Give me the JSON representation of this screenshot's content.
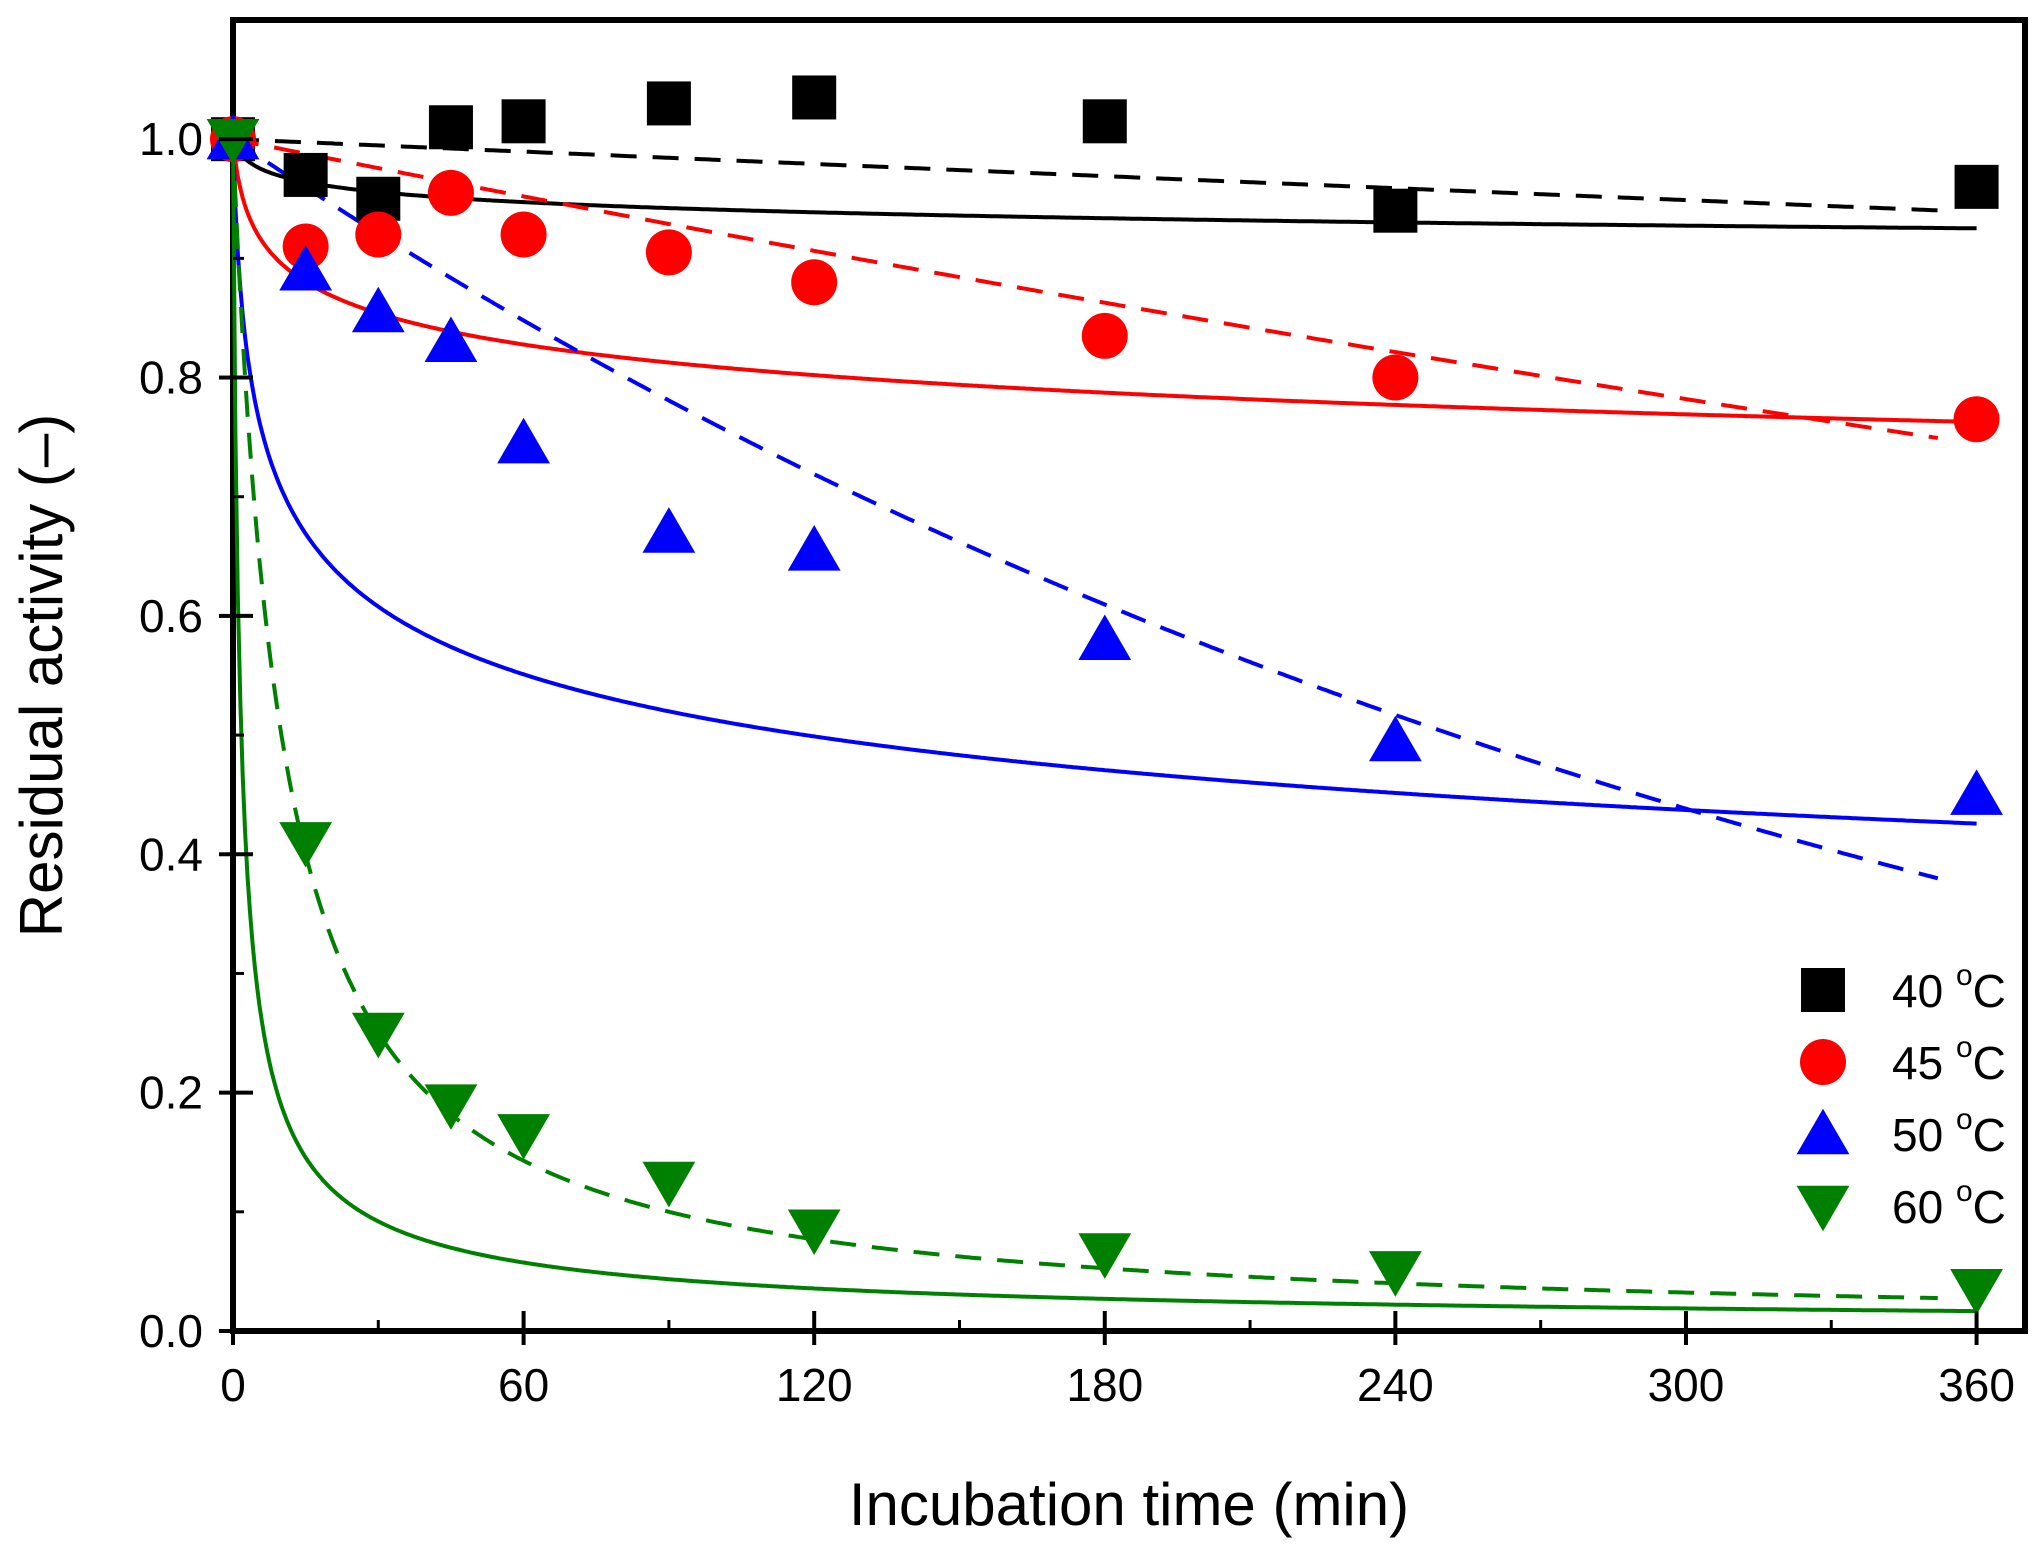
{
  "chart_data": {
    "type": "scatter",
    "xlabel": "Incubation time (min)",
    "ylabel": "Residual activity (–)",
    "xlim": [
      0,
      370
    ],
    "ylim": [
      0,
      1.1
    ],
    "x_ticks": [
      0,
      60,
      120,
      180,
      240,
      300,
      360
    ],
    "y_ticks": [
      0.0,
      0.2,
      0.4,
      0.6,
      0.8,
      1.0
    ],
    "x_tick_labels": [
      "0",
      "60",
      "120",
      "180",
      "240",
      "300",
      "360"
    ],
    "y_tick_labels": [
      "0.0",
      "0.2",
      "0.4",
      "0.6",
      "0.8",
      "1.0"
    ],
    "legend_position": "bottom-right",
    "series": [
      {
        "name": "40 °C",
        "label_main": "40 ",
        "label_sup": "o",
        "label_unit": "C",
        "color": "#000000",
        "marker": "square",
        "x": [
          0,
          15,
          30,
          45,
          60,
          90,
          120,
          180,
          240,
          360
        ],
        "y": [
          1.0,
          0.97,
          0.95,
          1.01,
          1.015,
          1.03,
          1.035,
          1.015,
          0.94,
          0.96
        ],
        "fit_solid": {
          "type": "power",
          "a": 1.0,
          "b": 0.0132
        },
        "fit_dashed": {
          "type": "exp",
          "a": 1.0,
          "k": 0.000175
        }
      },
      {
        "name": "45 °C",
        "label_main": "45 ",
        "label_sup": "o",
        "label_unit": "C",
        "color": "#ff0000",
        "marker": "circle",
        "x": [
          0,
          15,
          30,
          45,
          60,
          90,
          120,
          180,
          240,
          360
        ],
        "y": [
          1.0,
          0.91,
          0.92,
          0.955,
          0.92,
          0.905,
          0.88,
          0.835,
          0.8,
          0.765
        ],
        "fit_solid": {
          "type": "power",
          "a": 1.0,
          "b": 0.046
        },
        "fit_dashed": {
          "type": "exp",
          "a": 1.0,
          "k": 0.00082
        }
      },
      {
        "name": "50 °C",
        "label_main": "50 ",
        "label_sup": "o",
        "label_unit": "C",
        "color": "#0000ff",
        "marker": "triangle-up",
        "x": [
          0,
          15,
          30,
          45,
          60,
          90,
          120,
          180,
          240,
          360
        ],
        "y": [
          1.0,
          0.89,
          0.855,
          0.83,
          0.745,
          0.67,
          0.655,
          0.58,
          0.495,
          0.45
        ],
        "fit_solid": {
          "type": "power",
          "a": 1.0,
          "b": 0.145
        },
        "fit_dashed": {
          "type": "exp",
          "a": 1.0,
          "k": 0.00275
        }
      },
      {
        "name": "60 °C",
        "label_main": "60 ",
        "label_sup": "o",
        "label_unit": "C",
        "color": "#008000",
        "marker": "triangle-down",
        "x": [
          0,
          15,
          30,
          45,
          60,
          90,
          120,
          180,
          240,
          360
        ],
        "y": [
          1.0,
          0.41,
          0.25,
          0.19,
          0.165,
          0.125,
          0.085,
          0.065,
          0.05,
          0.035
        ],
        "fit_solid": {
          "type": "power",
          "a": 1.0,
          "b": 0.695
        },
        "fit_dashed": {
          "type": "hyperbolic",
          "a": 1.0,
          "k": 0.1
        }
      }
    ]
  }
}
